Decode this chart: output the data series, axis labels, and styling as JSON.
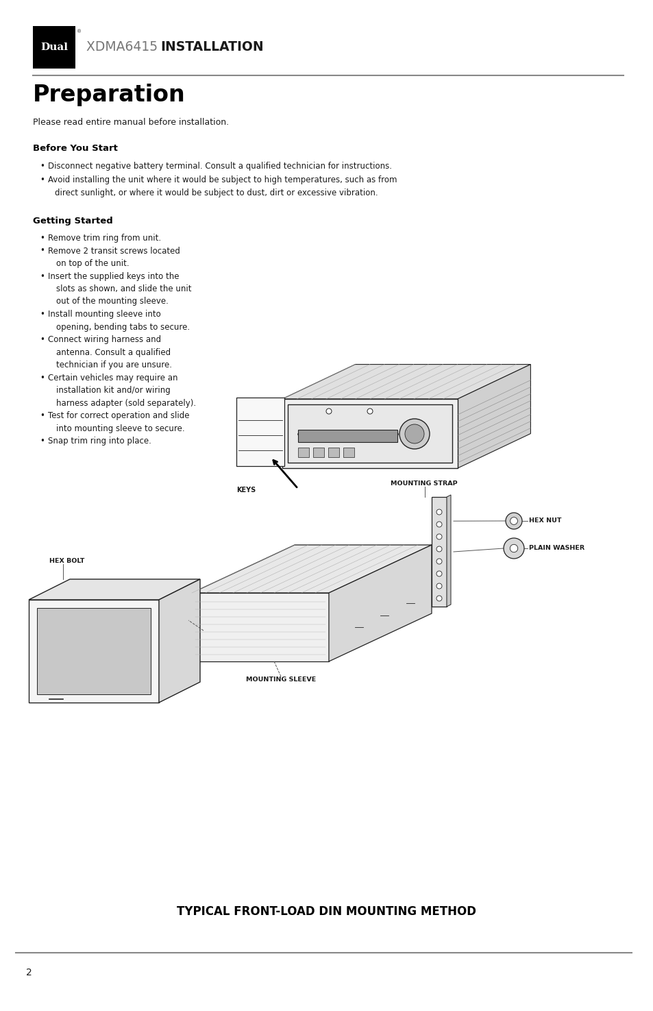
{
  "page_width": 9.54,
  "page_height": 14.75,
  "bg_color": "#ffffff",
  "header_title_normal": "XDMA6415 ",
  "header_title_bold": "INSTALLATION",
  "section_title": "Preparation",
  "subtitle": "Please read entire manual before installation.",
  "before_you_start_heading": "Before You Start",
  "bys_bullet1": "Disconnect negative battery terminal. Consult a qualified technician for instructions.",
  "bys_bullet2a": "Avoid installing the unit where it would be subject to high temperatures, such as from",
  "bys_bullet2b": "  direct sunlight, or where it would be subject to dust, dirt or excessive vibration.",
  "getting_started_heading": "Getting Started",
  "gs_bullets": [
    "Remove trim ring from unit.",
    "Remove 2 transit screws located",
    "on top of the unit.",
    "Insert the supplied keys into the",
    "slots as shown, and slide the unit",
    "out of the mounting sleeve.",
    "Install mounting sleeve into",
    "opening, bending tabs to secure.",
    "Connect wiring harness and",
    "antenna. Consult a qualified",
    "technician if you are unsure.",
    "Certain vehicles may require an",
    "installation kit and/or wiring",
    "harness adapter (sold separately).",
    "Test for correct operation and slide",
    "into mounting sleeve to secure.",
    "Snap trim ring into place."
  ],
  "gs_bullet_groups": [
    [
      "Remove trim ring from unit."
    ],
    [
      "Remove 2 transit screws located",
      "on top of the unit."
    ],
    [
      "Insert the supplied keys into the",
      "slots as shown, and slide the unit",
      "out of the mounting sleeve."
    ],
    [
      "Install mounting sleeve into",
      "opening, bending tabs to secure."
    ],
    [
      "Connect wiring harness and",
      "antenna. Consult a qualified",
      "technician if you are unsure."
    ],
    [
      "Certain vehicles may require an",
      "installation kit and/or wiring",
      "harness adapter (sold separately)."
    ],
    [
      "Test for correct operation and slide",
      "into mounting sleeve to secure."
    ],
    [
      "Snap trim ring into place."
    ]
  ],
  "label_keys": "KEYS",
  "label_mounting_strap": "MOUNTING STRAP",
  "label_hex_nut": "HEX NUT",
  "label_plain_washer": "PLAIN WASHER",
  "label_hex_bolt": "HEX BOLT",
  "label_mounting_sleeve": "MOUNTING SLEEVE",
  "footer_title": "TYPICAL FRONT-LOAD DIN MOUNTING METHOD",
  "page_number": "2",
  "separator_color": "#888888",
  "text_color": "#1a1a1a",
  "heading_color": "#000000",
  "label_color": "#1a1a1a",
  "diagram_line_color": "#222222",
  "diagram_fill": "#ffffff",
  "diagram_shade": "#e0e0e0"
}
